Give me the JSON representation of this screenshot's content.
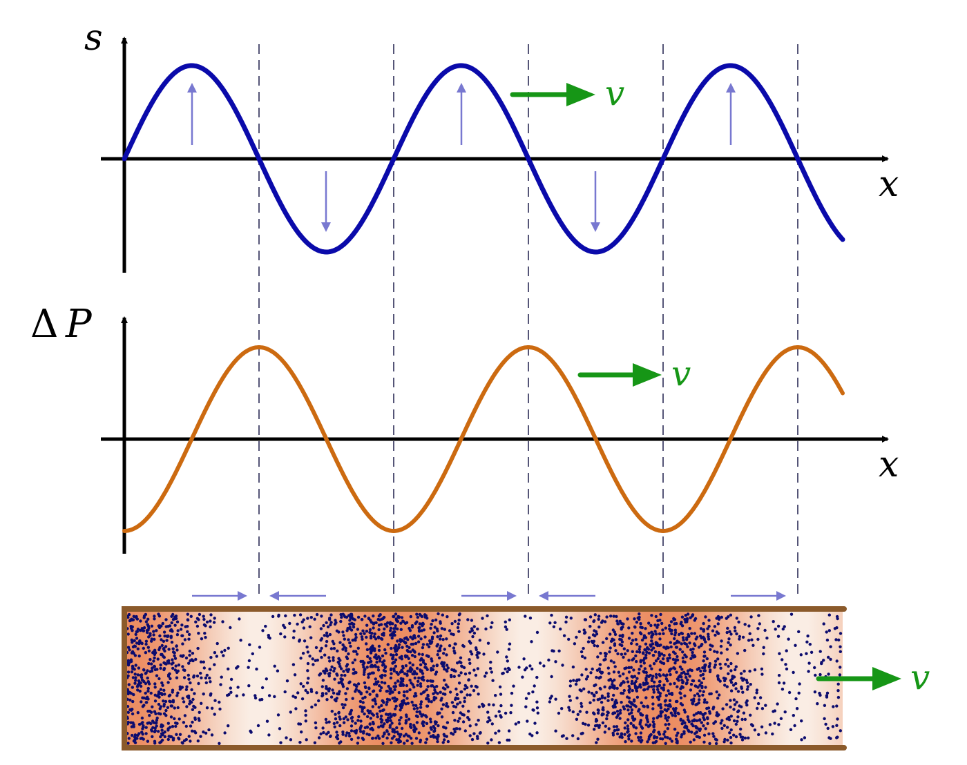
{
  "top_graph": {
    "y_label": "s",
    "x_label": "x",
    "velocity_label": "v"
  },
  "middle_graph": {
    "y_label_prefix": "Δ",
    "y_label": "P",
    "x_label": "x",
    "velocity_label": "v"
  },
  "tube": {
    "velocity_label": "v"
  },
  "colors": {
    "displacement": "#0a0aaa",
    "pressure": "#cc6a10",
    "velocity": "#169616",
    "particle_arrows": "#7878d0",
    "tube_wall": "#8b5a2b",
    "particles": "#0c0c6e",
    "compression": "#ec8c60",
    "rarefaction": "#faf0e8",
    "guides": "#555577"
  }
}
